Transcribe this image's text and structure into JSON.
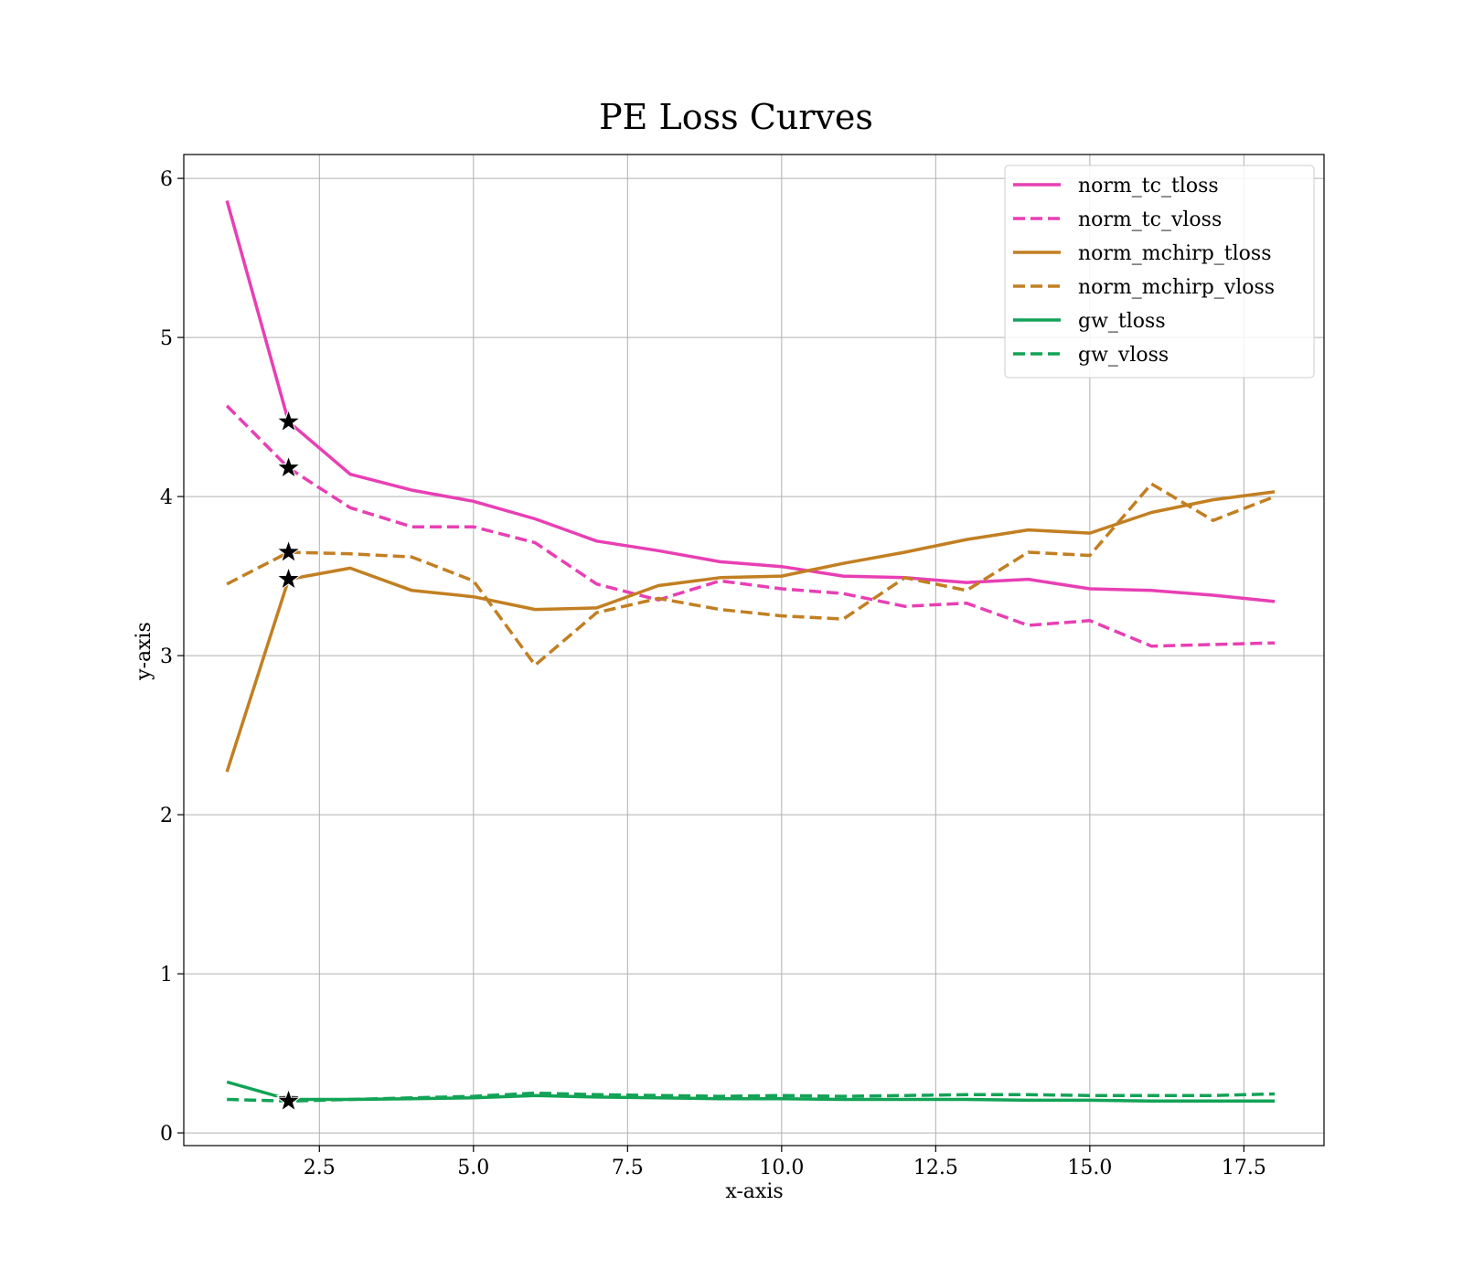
{
  "chart_data": {
    "type": "line",
    "title": "PE Loss Curves",
    "xlabel": "x-axis",
    "ylabel": "y-axis",
    "xlim": [
      0.3,
      18.8
    ],
    "ylim": [
      -0.08,
      6.15
    ],
    "xticks": [
      2.5,
      5.0,
      7.5,
      10.0,
      12.5,
      15.0,
      17.5
    ],
    "xtick_labels": [
      "2.5",
      "5.0",
      "7.5",
      "10.0",
      "12.5",
      "15.0",
      "17.5"
    ],
    "yticks": [
      0,
      1,
      2,
      3,
      4,
      5,
      6
    ],
    "ytick_labels": [
      "0",
      "1",
      "2",
      "3",
      "4",
      "5",
      "6"
    ],
    "grid": true,
    "legend_position": "top-right",
    "x": [
      1,
      2,
      3,
      4,
      5,
      6,
      7,
      8,
      9,
      10,
      11,
      12,
      13,
      14,
      15,
      16,
      17,
      18
    ],
    "series": [
      {
        "name": "norm_tc_tloss",
        "color": "#e83fb4",
        "dash": "solid",
        "values": [
          5.86,
          4.47,
          4.14,
          4.04,
          3.97,
          3.86,
          3.72,
          3.66,
          3.59,
          3.56,
          3.5,
          3.49,
          3.46,
          3.48,
          3.42,
          3.41,
          3.38,
          3.34
        ]
      },
      {
        "name": "norm_tc_vloss",
        "color": "#e83fb4",
        "dash": "dashed",
        "values": [
          4.57,
          4.18,
          3.93,
          3.81,
          3.81,
          3.71,
          3.45,
          3.35,
          3.47,
          3.42,
          3.39,
          3.31,
          3.33,
          3.19,
          3.22,
          3.06,
          3.07,
          3.08
        ]
      },
      {
        "name": "norm_mchirp_tloss",
        "color": "#c27f22",
        "dash": "solid",
        "values": [
          2.27,
          3.48,
          3.55,
          3.41,
          3.37,
          3.29,
          3.3,
          3.44,
          3.49,
          3.5,
          3.58,
          3.65,
          3.73,
          3.79,
          3.77,
          3.9,
          3.98,
          4.03
        ]
      },
      {
        "name": "norm_mchirp_vloss",
        "color": "#c27f22",
        "dash": "dashed",
        "values": [
          3.45,
          3.65,
          3.64,
          3.62,
          3.47,
          2.94,
          3.27,
          3.36,
          3.29,
          3.25,
          3.23,
          3.49,
          3.41,
          3.65,
          3.63,
          4.08,
          3.85,
          4.0
        ]
      },
      {
        "name": "gw_tloss",
        "color": "#12a356",
        "dash": "solid",
        "values": [
          0.32,
          0.21,
          0.21,
          0.215,
          0.22,
          0.235,
          0.225,
          0.22,
          0.215,
          0.215,
          0.21,
          0.21,
          0.21,
          0.205,
          0.205,
          0.2,
          0.2,
          0.2
        ]
      },
      {
        "name": "gw_vloss",
        "color": "#12a356",
        "dash": "dashed",
        "values": [
          0.21,
          0.2,
          0.21,
          0.22,
          0.23,
          0.25,
          0.24,
          0.235,
          0.23,
          0.235,
          0.23,
          0.235,
          0.24,
          0.24,
          0.235,
          0.235,
          0.235,
          0.245
        ]
      }
    ],
    "markers": [
      {
        "x": 2,
        "y": 4.47,
        "symbol": "star"
      },
      {
        "x": 2,
        "y": 4.18,
        "symbol": "star"
      },
      {
        "x": 2,
        "y": 3.65,
        "symbol": "star"
      },
      {
        "x": 2,
        "y": 3.48,
        "symbol": "star"
      },
      {
        "x": 2,
        "y": 0.21,
        "symbol": "star"
      },
      {
        "x": 2,
        "y": 0.2,
        "symbol": "star"
      }
    ]
  }
}
